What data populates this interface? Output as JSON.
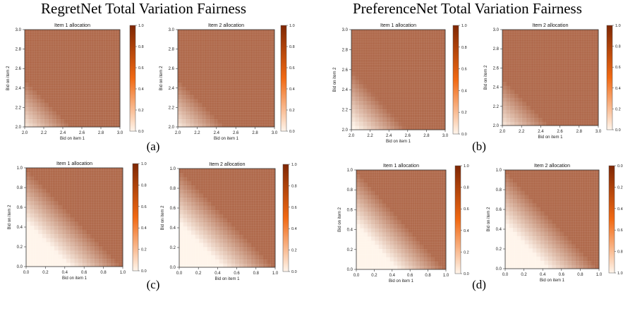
{
  "headings": {
    "left": "RegretNet Total Variation Fairness",
    "right": "PreferenceNet Total Variation Fairness"
  },
  "colors": {
    "cmap_low": "#fff5eb",
    "cmap_mid": "#f16913",
    "cmap_high": "#7f2704",
    "allocated": "#b06a4c"
  },
  "chart_data": [
    {
      "panel": "(a)",
      "section": "RegretNet Total Variation Fairness",
      "type": "heatmap",
      "title": "Item 1 allocation",
      "xlabel": "Bid on item 1",
      "ylabel": "Bid on item 2",
      "xlim": [
        2.0,
        3.0
      ],
      "ylim": [
        2.0,
        3.0
      ],
      "xticks": [
        "2.0",
        "2.2",
        "2.4",
        "2.6",
        "2.8",
        "3.0"
      ],
      "yticks": [
        "2.0",
        "2.2",
        "2.4",
        "2.6",
        "2.8",
        "3.0"
      ],
      "colorbar": {
        "range": [
          0.0,
          1.0
        ],
        "ticks": [
          "0.0",
          "0.2",
          "0.4",
          "0.6",
          "0.8",
          "1.0"
        ]
      },
      "boundary": "x + y = 4.5",
      "allocation_above_boundary": 1.0
    },
    {
      "panel": "(a)",
      "section": "RegretNet Total Variation Fairness",
      "type": "heatmap",
      "title": "Item 2 allocation",
      "xlabel": "Bid on item 1",
      "ylabel": "Bid on item 2",
      "xlim": [
        2.0,
        3.0
      ],
      "ylim": [
        2.0,
        3.0
      ],
      "xticks": [
        "2.0",
        "2.2",
        "2.4",
        "2.6",
        "2.8",
        "3.0"
      ],
      "yticks": [
        "2.0",
        "2.2",
        "2.4",
        "2.6",
        "2.8",
        "3.0"
      ],
      "colorbar": {
        "range": [
          0.0,
          1.0
        ],
        "ticks": [
          "0.0",
          "0.2",
          "0.4",
          "0.6",
          "0.8",
          "1.0"
        ]
      },
      "boundary": "x + y = 4.5",
      "allocation_above_boundary": 1.0
    },
    {
      "panel": "(b)",
      "section": "PreferenceNet Total Variation Fairness",
      "type": "heatmap",
      "title": "Item 1 allocation",
      "xlabel": "Bid on item 1",
      "ylabel": "Bid on item 2",
      "xlim": [
        2.0,
        3.0
      ],
      "ylim": [
        2.0,
        3.0
      ],
      "xticks": [
        "2.0",
        "2.2",
        "2.4",
        "2.6",
        "2.8",
        "3.0"
      ],
      "yticks": [
        "2.0",
        "2.2",
        "2.4",
        "2.6",
        "2.8",
        "3.0"
      ],
      "colorbar": {
        "range": [
          0.0,
          1.0
        ],
        "ticks": [
          "0.0",
          "0.2",
          "0.4",
          "0.6",
          "0.8",
          "1.0"
        ]
      },
      "boundary": "x + y = 4.6",
      "allocation_above_boundary": 1.0
    },
    {
      "panel": "(b)",
      "section": "PreferenceNet Total Variation Fairness",
      "type": "heatmap",
      "title": "Item 2 allocation",
      "xlabel": "Bid on item 1",
      "ylabel": "Bid on item 2",
      "xlim": [
        2.0,
        3.0
      ],
      "ylim": [
        2.0,
        3.0
      ],
      "xticks": [
        "2.0",
        "2.2",
        "2.4",
        "2.6",
        "2.8",
        "3.0"
      ],
      "yticks": [
        "2.0",
        "2.2",
        "2.4",
        "2.6",
        "2.8",
        "3.0"
      ],
      "colorbar": {
        "range": [
          0.0,
          1.0
        ],
        "ticks": [
          "0.0",
          "0.2",
          "0.4",
          "0.6",
          "0.8",
          "1.0"
        ]
      },
      "boundary": "x + y = 4.5",
      "allocation_above_boundary": 1.0
    },
    {
      "panel": "(c)",
      "section": "RegretNet Total Variation Fairness",
      "type": "heatmap",
      "title": "Item 1 allocation",
      "xlabel": "Bid on item 1",
      "ylabel": "Bid on item 2",
      "xlim": [
        0.0,
        1.0
      ],
      "ylim": [
        0.0,
        1.0
      ],
      "xticks": [
        "0.0",
        "0.2",
        "0.4",
        "0.6",
        "0.8",
        "1.0"
      ],
      "yticks": [
        "0.0",
        "0.2",
        "0.4",
        "0.6",
        "0.8",
        "1.0"
      ],
      "colorbar": {
        "range": [
          0.0,
          1.0
        ],
        "ticks": [
          "0.0",
          "0.2",
          "0.4",
          "0.6",
          "0.8",
          "1.0"
        ]
      },
      "boundary": "x + y = 1.0",
      "allocation_above_boundary": 1.0
    },
    {
      "panel": "(c)",
      "section": "RegretNet Total Variation Fairness",
      "type": "heatmap",
      "title": "Item 2 allocation",
      "xlabel": "Bid on item 1",
      "ylabel": "Bid on item 2",
      "xlim": [
        0.0,
        1.0
      ],
      "ylim": [
        0.0,
        1.0
      ],
      "xticks": [
        "0.0",
        "0.2",
        "0.4",
        "0.6",
        "0.8",
        "1.0"
      ],
      "yticks": [
        "0.0",
        "0.2",
        "0.4",
        "0.6",
        "0.8",
        "1.0"
      ],
      "colorbar": {
        "range": [
          0.0,
          1.0
        ],
        "ticks": [
          "0.0",
          "0.2",
          "0.4",
          "0.6",
          "0.8",
          "1.0"
        ]
      },
      "boundary": "x + y = 1.0",
      "allocation_above_boundary": 1.0
    },
    {
      "panel": "(d)",
      "section": "PreferenceNet Total Variation Fairness",
      "type": "heatmap",
      "title": "Item 1 allocation",
      "xlabel": "Bid on item 1",
      "ylabel": "Bid on item 2",
      "xlim": [
        0.0,
        1.0
      ],
      "ylim": [
        0.0,
        1.0
      ],
      "xticks": [
        "0.0",
        "0.2",
        "0.4",
        "0.6",
        "0.8",
        "1.0"
      ],
      "yticks": [
        "0.0",
        "0.2",
        "0.4",
        "0.6",
        "0.8",
        "1.0"
      ],
      "colorbar": {
        "range": [
          0.0,
          1.0
        ],
        "ticks": [
          "0.0",
          "0.2",
          "0.4",
          "0.6",
          "0.8",
          "1.0"
        ]
      },
      "boundary": "x + y = 1.0",
      "allocation_above_boundary": 1.0
    },
    {
      "panel": "(d)",
      "section": "PreferenceNet Total Variation Fairness",
      "type": "heatmap",
      "title": "Item 2 allocation",
      "xlabel": "Bid on item 1",
      "ylabel": "Bid on item 2",
      "xlim": [
        0.0,
        1.0
      ],
      "ylim": [
        0.0,
        1.0
      ],
      "xticks": [
        "0.0",
        "0.2",
        "0.4",
        "0.6",
        "0.8",
        "1.0"
      ],
      "yticks": [
        "0.0",
        "0.2",
        "0.4",
        "0.6",
        "0.8",
        "1.0"
      ],
      "colorbar": {
        "range": [
          0.0,
          1.0
        ],
        "ticks": [
          "1.0",
          "0.8",
          "0.6",
          "0.4",
          "0.2",
          "0.0"
        ]
      },
      "boundary": "x + y = 1.0",
      "allocation_above_boundary": 1.0
    }
  ],
  "captions": [
    "(a)",
    "(b)",
    "(c)",
    "(d)"
  ]
}
